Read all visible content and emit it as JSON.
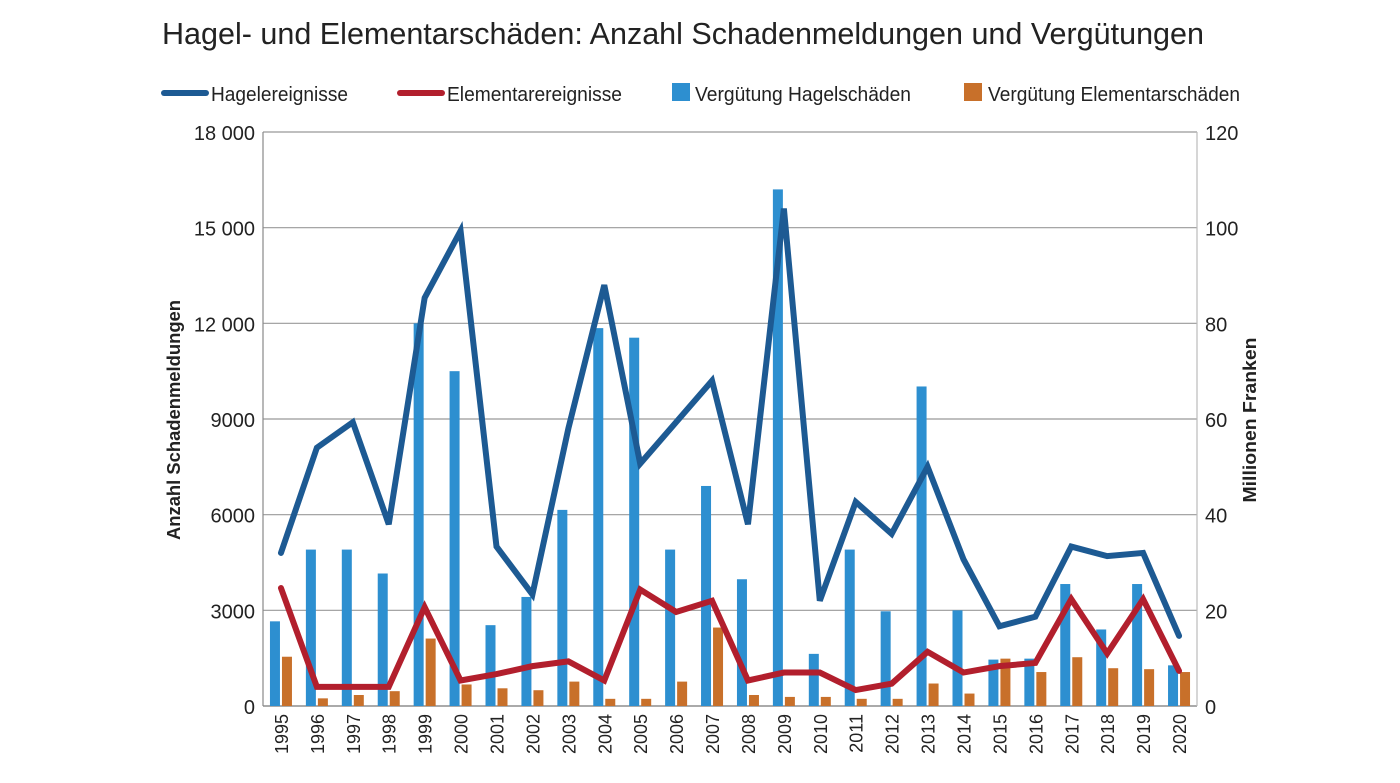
{
  "chart_data": {
    "type": "bar",
    "title": "Hagel- und Elementarschäden: Anzahl Schadenmeldungen und Vergütungen",
    "ylabel_left": "Anzahl Schadenmeldungen",
    "ylabel_right": "Millionen Franken",
    "ylim_left": [
      0,
      18000
    ],
    "ylim_right": [
      0,
      120
    ],
    "yticks_left": [
      "0",
      "3000",
      "6000",
      "9000",
      "12 000",
      "15 000",
      "18 000"
    ],
    "yticks_right": [
      "0",
      "20",
      "40",
      "60",
      "80",
      "100",
      "120"
    ],
    "grid": true,
    "legend_position": "top",
    "categories": [
      "1995",
      "1996",
      "1997",
      "1998",
      "1999",
      "2000",
      "2001",
      "2002",
      "2003",
      "2004",
      "2005",
      "2006",
      "2007",
      "2008",
      "2009",
      "2010",
      "2011",
      "2012",
      "2013",
      "2014",
      "2015",
      "2016",
      "2017",
      "2018",
      "2019",
      "2020"
    ],
    "series": [
      {
        "name": "Hagelereignisse",
        "kind": "line",
        "axis": "left",
        "color": "#1d5a93",
        "values": [
          4800,
          8100,
          8900,
          5700,
          12800,
          14900,
          5000,
          3500,
          8700,
          13200,
          7600,
          8900,
          10200,
          5700,
          15600,
          3300,
          6400,
          5400,
          7500,
          4600,
          2500,
          2800,
          5000,
          4700,
          4800,
          2200
        ]
      },
      {
        "name": "Elementarereignisse",
        "kind": "line",
        "axis": "left",
        "color": "#b21f2d",
        "values": [
          3700,
          600,
          600,
          600,
          3100,
          800,
          1000,
          1250,
          1400,
          800,
          3650,
          2950,
          3300,
          800,
          1050,
          1050,
          500,
          700,
          1700,
          1050,
          1250,
          1350,
          3350,
          1650,
          3350,
          1100
        ]
      },
      {
        "name": "Vergütung Hagelschäden",
        "kind": "bar",
        "axis": "right",
        "color": "#2d8fd0",
        "values": [
          17.7,
          32.7,
          32.7,
          27.7,
          80,
          70,
          16.9,
          22.8,
          41,
          79,
          77,
          32.7,
          46,
          26.5,
          108,
          10.9,
          32.7,
          19.8,
          66.8,
          20,
          9.7,
          9.9,
          25.5,
          16,
          25.5,
          8.5
        ]
      },
      {
        "name": "Vergütung Elementarschäden",
        "kind": "bar",
        "axis": "right",
        "color": "#c8702a",
        "values": [
          10.3,
          1.6,
          2.3,
          3.1,
          14.1,
          4.5,
          3.7,
          3.3,
          5.1,
          1.5,
          1.5,
          5.1,
          16.4,
          2.3,
          1.9,
          1.9,
          1.5,
          1.5,
          4.7,
          2.6,
          9.9,
          7.1,
          10.2,
          7.9,
          7.7,
          7.1
        ]
      }
    ]
  }
}
